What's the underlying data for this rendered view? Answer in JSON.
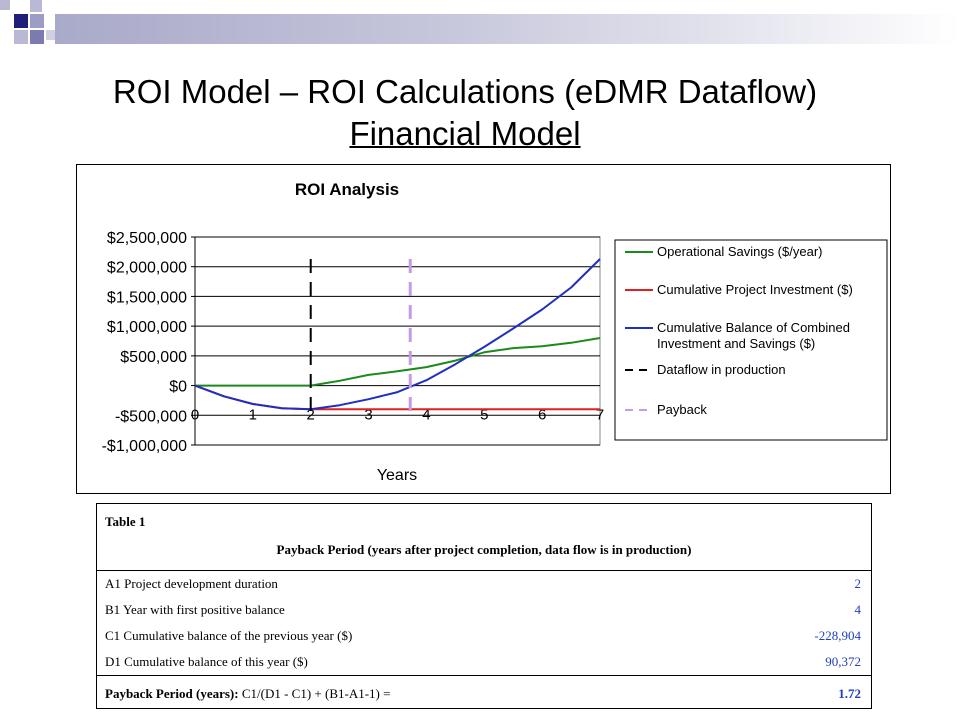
{
  "slide": {
    "title": "ROI Model – ROI Calculations (eDMR Dataflow)",
    "subtitle": "Financial Model"
  },
  "colors": {
    "decor_dark": "#1f1f7a",
    "decor_mid": "#7b7bb0",
    "decor_light": "#b9b9d6",
    "topbar_start": "#a9a9c9"
  },
  "chart_data": {
    "type": "line",
    "title": "ROI Analysis",
    "xlabel": "Years",
    "ylabel": "",
    "x": [
      0,
      1,
      2,
      3,
      4,
      5,
      6,
      7
    ],
    "xlim": [
      0,
      7
    ],
    "ylim": [
      -1000000,
      2500000
    ],
    "yticks": [
      {
        "value": 2500000,
        "label": "$2,500,000"
      },
      {
        "value": 2000000,
        "label": "$2,000,000"
      },
      {
        "value": 1500000,
        "label": "$1,500,000"
      },
      {
        "value": 1000000,
        "label": "$1,000,000"
      },
      {
        "value": 500000,
        "label": "$500,000"
      },
      {
        "value": 0,
        "label": "$0"
      },
      {
        "value": -500000,
        "label": "-$500,000"
      },
      {
        "value": -1000000,
        "label": "-$1,000,000"
      }
    ],
    "xticks": [
      "0",
      "1",
      "2",
      "3",
      "4",
      "5",
      "6",
      "7"
    ],
    "grid": "horizontal",
    "legend_position": "right",
    "series": [
      {
        "name": "Operational Savings ($/year)",
        "color": "#1a8a1a",
        "style": "solid",
        "x": [
          0,
          1,
          2,
          2.5,
          3,
          3.5,
          4,
          4.5,
          5,
          5.5,
          6,
          6.5,
          7
        ],
        "y": [
          0,
          0,
          0,
          80000,
          180000,
          240000,
          310000,
          420000,
          560000,
          630000,
          660000,
          720000,
          800000
        ]
      },
      {
        "name": "Cumulative Project Investment ($)",
        "color": "#e02020",
        "style": "solid",
        "x": [
          0,
          0.5,
          1,
          1.5,
          2,
          2.5,
          3,
          3.5,
          4,
          5,
          6,
          7
        ],
        "y": [
          0,
          -180000,
          -310000,
          -380000,
          -400000,
          -400000,
          -400000,
          -400000,
          -400000,
          -400000,
          -400000,
          -400000
        ]
      },
      {
        "name": "Cumulative Balance of Combined Investment and Savings ($)",
        "color": "#1f2fbf",
        "style": "solid",
        "x": [
          0,
          0.5,
          1,
          1.5,
          2,
          2.5,
          3,
          3.5,
          4,
          4.5,
          5,
          5.5,
          6,
          6.5,
          7
        ],
        "y": [
          0,
          -180000,
          -310000,
          -380000,
          -400000,
          -330000,
          -228904,
          -110000,
          90372,
          360000,
          650000,
          960000,
          1280000,
          1650000,
          2130000
        ]
      },
      {
        "name": "Dataflow in production",
        "color": "#000000",
        "style": "dashed",
        "vline": 2
      },
      {
        "name": "Payback",
        "color": "#c39be6",
        "style": "dashed",
        "vline": 3.72
      }
    ]
  },
  "table": {
    "caption": "Table 1",
    "header": "Payback Period (years after project completion, data flow is in production)",
    "rows": [
      {
        "label": "A1    Project development duration",
        "value": "2"
      },
      {
        "label": "B1   Year with first positive balance",
        "value": "4"
      },
      {
        "label": "C1    Cumulative balance of the previous year ($)",
        "value": "-228,904"
      },
      {
        "label": "D1    Cumulative balance of this year ($)",
        "value": "90,372"
      }
    ],
    "summary": {
      "label_bold": "Payback Period (years):",
      "label_formula": " C1/(D1 - C1) + (B1-A1-1) =",
      "value": "1.72"
    }
  }
}
